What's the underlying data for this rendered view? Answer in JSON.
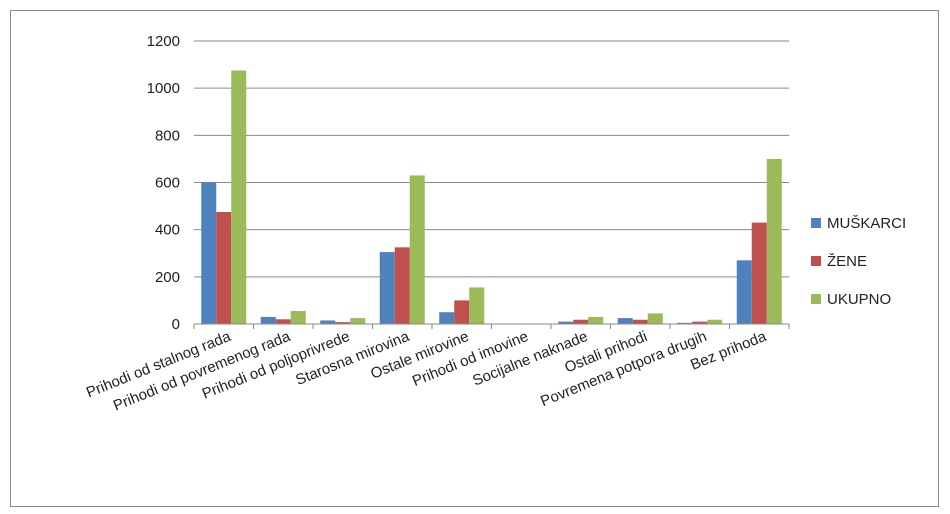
{
  "chart_data": {
    "type": "bar",
    "categories": [
      "Prihodi od stalnog rada",
      "Prihodi od povremenog rada",
      "Prihodi od poljoprivrede",
      "Starosna mirovina",
      "Ostale mirovine",
      "Prihodi od imovine",
      "Socijalne naknade",
      "Ostali prihodi",
      "Povremena potpora drugih",
      "Bez prihoda"
    ],
    "series": [
      {
        "name": "MUŠKARCI",
        "color": "#4f81bd",
        "values": [
          600,
          30,
          15,
          305,
          50,
          0,
          10,
          25,
          5,
          270
        ]
      },
      {
        "name": "ŽENE",
        "color": "#c0504d",
        "values": [
          475,
          20,
          8,
          325,
          100,
          0,
          18,
          18,
          10,
          430
        ]
      },
      {
        "name": "UKUPNO",
        "color": "#9bbb59",
        "values": [
          1075,
          55,
          25,
          630,
          155,
          0,
          30,
          45,
          18,
          700
        ]
      }
    ],
    "yticks": [
      0,
      200,
      400,
      600,
      800,
      1000,
      1200
    ],
    "ylim": [
      0,
      1200
    ],
    "grid": true,
    "legend": "right",
    "title": "",
    "xlabel": "",
    "ylabel": ""
  }
}
